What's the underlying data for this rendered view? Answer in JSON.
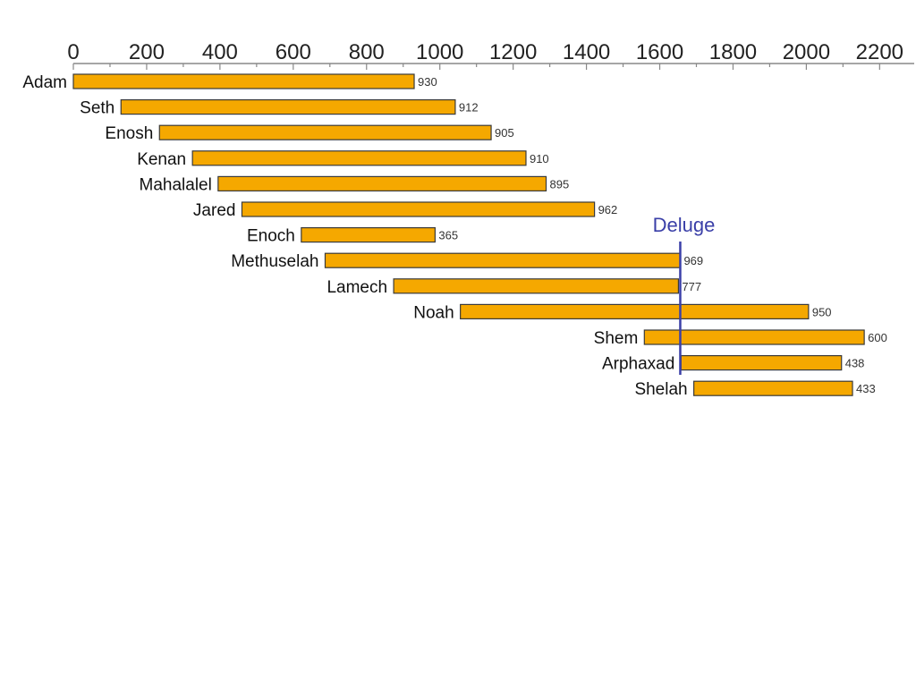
{
  "chart_data": {
    "type": "bar",
    "orientation": "horizontal-range",
    "title": "",
    "xlabel": "",
    "ylabel": "",
    "xlim": [
      0,
      2250
    ],
    "x_ticks": [
      0,
      200,
      400,
      600,
      800,
      1000,
      1200,
      1400,
      1600,
      1800,
      2000,
      2200
    ],
    "x_tick_labels": [
      "0",
      "200",
      "400",
      "600",
      "800",
      "1000",
      "1200",
      "1400",
      "1600",
      "1800",
      "2000",
      "2200"
    ],
    "grid": false,
    "bar_color": "#F5A800",
    "series": [
      {
        "categories": [
          "Adam",
          "Seth",
          "Enosh",
          "Kenan",
          "Mahalalel",
          "Jared",
          "Enoch",
          "Methuselah",
          "Lamech",
          "Noah",
          "Shem",
          "Arphaxad",
          "Shelah"
        ],
        "start": [
          0,
          130,
          235,
          325,
          395,
          460,
          622,
          687,
          874,
          1056,
          1558,
          1658,
          1693
        ],
        "values": [
          930,
          912,
          905,
          910,
          895,
          962,
          365,
          969,
          777,
          950,
          600,
          438,
          433
        ],
        "value_labels": [
          "930",
          "912",
          "905",
          "910",
          "895",
          "962",
          "365",
          "969",
          "777",
          "950",
          "600",
          "438",
          "433"
        ]
      }
    ],
    "annotations": [
      {
        "label": "Deluge",
        "x": 1656,
        "color": "#3A3FA8"
      }
    ]
  }
}
